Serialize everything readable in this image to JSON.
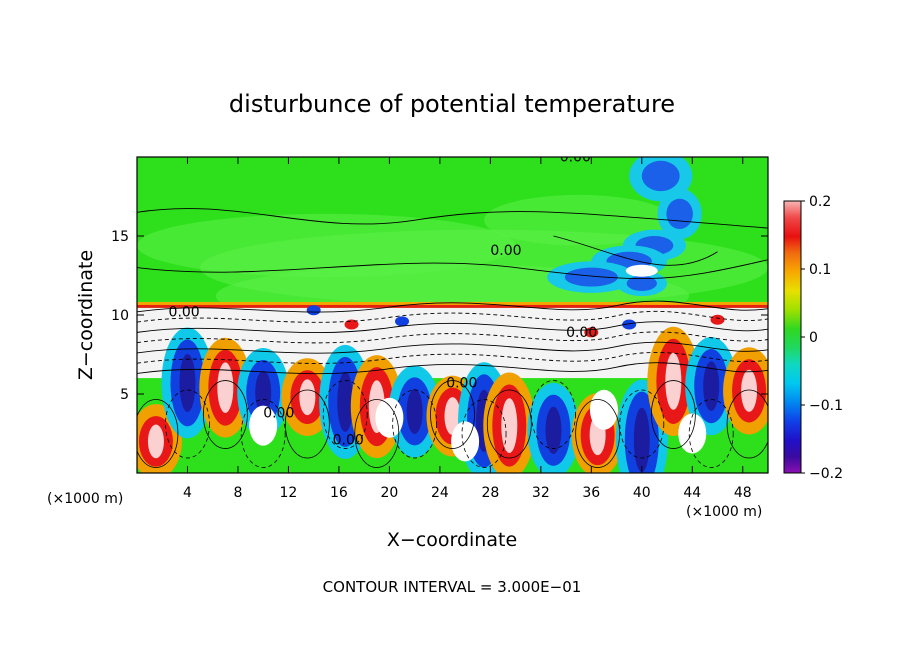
{
  "chart_data": {
    "type": "heatmap",
    "title": "disturbunce of potential temperature",
    "xlabel": "X−coordinate",
    "ylabel": "Z−coordinate",
    "x_unit": "(×1000 m)",
    "z_unit": "(×1000 m)",
    "xlim": [
      0,
      50
    ],
    "ylim": [
      0,
      20
    ],
    "x_ticks": [
      4,
      8,
      12,
      16,
      20,
      24,
      28,
      32,
      36,
      40,
      44,
      48
    ],
    "y_ticks": [
      5,
      10,
      15
    ],
    "colorbar": {
      "range": [
        -0.2,
        0.2
      ],
      "tick_labels": [
        "0.2",
        "0.1",
        "0",
        "−0.1",
        "−0.2"
      ],
      "tick_values": [
        0.2,
        0.1,
        0,
        -0.1,
        -0.2
      ]
    },
    "contour_labels": [
      "0.00",
      "0.00",
      "0.00",
      "0.00",
      "0.00",
      "0.00",
      "0.00"
    ],
    "footer": "CONTOUR INTERVAL = 3.000E−01",
    "colors": {
      "background_field": "#33e01f",
      "upper_field": "#2fdc2a",
      "axis": "#000000"
    }
  }
}
